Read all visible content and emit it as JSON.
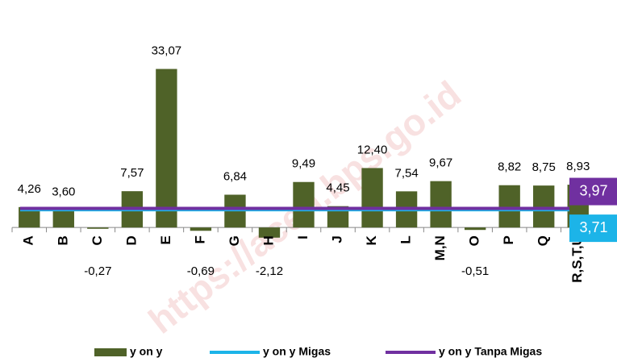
{
  "chart_data": {
    "type": "bar",
    "watermark": "https://aceh.bps.go.id",
    "categories": [
      "A",
      "B",
      "C",
      "D",
      "E",
      "F",
      "G",
      "H",
      "I",
      "J",
      "K",
      "L",
      "M,N",
      "O",
      "P",
      "Q",
      "R,S,T,U"
    ],
    "series": [
      {
        "name": "y on y",
        "color": "#4f6228",
        "values": [
          4.26,
          3.6,
          -0.27,
          7.57,
          33.07,
          -0.69,
          6.84,
          -2.12,
          9.49,
          4.45,
          12.4,
          7.54,
          9.67,
          -0.51,
          8.82,
          8.75,
          8.93
        ],
        "value_labels": [
          "4,26",
          "3,60",
          "-0,27",
          "7,57",
          "33,07",
          "-0,69",
          "6,84",
          "-2,12",
          "9,49",
          "4,45",
          "12,40",
          "7,54",
          "9,67",
          "-0,51",
          "8,82",
          "8,75",
          "8,93"
        ]
      }
    ],
    "lines": [
      {
        "name": "y on y Migas",
        "color": "#1cb4e8",
        "value": 3.71,
        "label": "3,71"
      },
      {
        "name": "y on y Tanpa Migas",
        "color": "#7030a0",
        "value": 3.97,
        "label": "3,97"
      }
    ],
    "ylim": [
      -3,
      34
    ]
  }
}
